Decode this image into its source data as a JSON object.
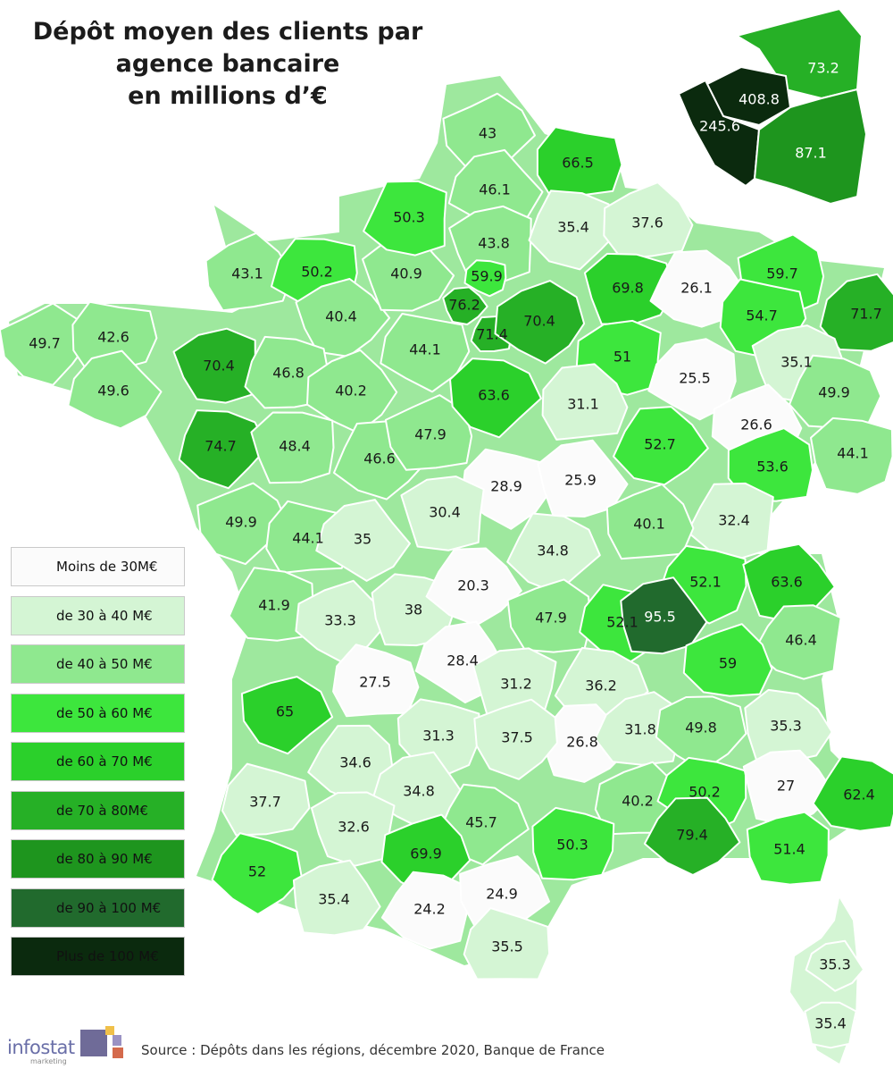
{
  "title": {
    "line1": "Dépôt moyen des clients par",
    "line2": "agence bancaire",
    "line3": "en millions d’€"
  },
  "colors": {
    "lt30": "#fbfbfb",
    "r30_40": "#d4f5d4",
    "r40_50": "#8fe88f",
    "r50_60": "#3de63d",
    "r60_70": "#2bd02b",
    "r70_80": "#26b026",
    "r80_90": "#1e951e",
    "r90_100": "#216a2d",
    "gt100": "#0b2a0e"
  },
  "legend": [
    {
      "label": "Moins de 30M€",
      "color": "#fbfbfb"
    },
    {
      "label": "de 30 à 40 M€",
      "color": "#d4f5d4"
    },
    {
      "label": "de 40 à 50 M€",
      "color": "#8fe88f"
    },
    {
      "label": "de 50 à 60 M€",
      "color": "#3de63d"
    },
    {
      "label": "de 60 à 70 M€",
      "color": "#2bd02b"
    },
    {
      "label": "de 70 à 80M€",
      "color": "#26b026"
    },
    {
      "label": "de 80 à 90 M€",
      "color": "#1e951e"
    },
    {
      "label": "de 90 à 100 M€",
      "color": "#216a2d"
    },
    {
      "label": "Plus de 100 M€",
      "color": "#0b2a0e"
    }
  ],
  "values": [
    "49.7",
    "42.6",
    "49.6",
    "70.4",
    "74.7",
    "43.1",
    "50.2",
    "40.4",
    "46.8",
    "40.2",
    "48.4",
    "46.6",
    "47.9",
    "44.1",
    "40.9",
    "50.3",
    "43",
    "66.5",
    "46.1",
    "43.8",
    "35.4",
    "37.6",
    "59.9",
    "76.2",
    "71.4",
    "70.4",
    "69.8",
    "26.1",
    "59.7",
    "54.7",
    "71.7",
    "51",
    "63.6",
    "31.1",
    "25.5",
    "35.1",
    "49.9",
    "26.6",
    "44.1",
    "52.7",
    "53.6",
    "28.9",
    "25.9",
    "32.4",
    "49.9",
    "44.1",
    "35",
    "30.4",
    "34.8",
    "40.1",
    "52.1",
    "63.6",
    "41.9",
    "33.3",
    "38",
    "20.3",
    "47.9",
    "52.1",
    "95.5",
    "46.4",
    "65",
    "27.5",
    "28.4",
    "31.2",
    "36.2",
    "59",
    "31.3",
    "26.8",
    "31.8",
    "49.8",
    "35.3",
    "34.6",
    "37.5",
    "37.7",
    "34.8",
    "32.6",
    "45.7",
    "40.2",
    "50.2",
    "27",
    "62.4",
    "69.9",
    "50.3",
    "79.4",
    "51.4",
    "52",
    "35.4",
    "24.2",
    "24.9",
    "35.5",
    "35.3",
    "35.4"
  ],
  "inset_values": [
    "73.2",
    "408.8",
    "245.6",
    "87.1"
  ],
  "source": "Source : Dépôts dans les régions, décembre 2020, Banque de France",
  "logo": {
    "name": "infostat",
    "sub": "marketing"
  }
}
